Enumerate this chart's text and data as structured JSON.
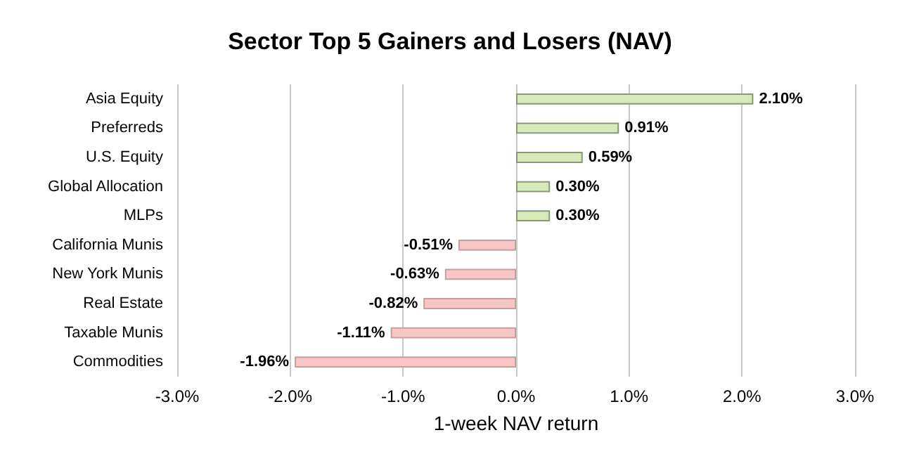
{
  "chart_data": {
    "type": "bar",
    "orientation": "horizontal",
    "title": "Sector Top 5 Gainers and Losers (NAV)",
    "xlabel": "1-week NAV return",
    "categories": [
      "Asia Equity",
      "Preferreds",
      "U.S. Equity",
      "Global Allocation",
      "MLPs",
      "California Munis",
      "New York Munis",
      "Real Estate",
      "Taxable Munis",
      "Commodities"
    ],
    "values": [
      2.1,
      0.91,
      0.59,
      0.3,
      0.3,
      -0.51,
      -0.63,
      -0.82,
      -1.11,
      -1.96
    ],
    "value_labels": [
      "2.10%",
      "0.91%",
      "0.59%",
      "0.30%",
      "0.30%",
      "-0.51%",
      "-0.63%",
      "-0.82%",
      "-1.11%",
      "-1.96%"
    ],
    "colors": [
      "#d6e9b8",
      "#d6e9b8",
      "#d6e9b8",
      "#d6e9b8",
      "#d6e9b8",
      "#f8c6c6",
      "#f8c6c6",
      "#f8c6c6",
      "#f8c6c6",
      "#f8c6c6"
    ],
    "xlim": [
      -3,
      3
    ],
    "xticks": [
      {
        "value": -3,
        "label": "-3.0%"
      },
      {
        "value": -2,
        "label": "-2.0%"
      },
      {
        "value": -1,
        "label": "-1.0%"
      },
      {
        "value": 0,
        "label": "0.0%"
      },
      {
        "value": 1,
        "label": "1.0%"
      },
      {
        "value": 2,
        "label": "2.0%"
      },
      {
        "value": 3,
        "label": "3.0%"
      }
    ],
    "grid": "x"
  }
}
